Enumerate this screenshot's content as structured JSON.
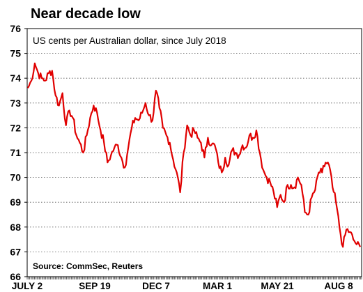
{
  "chart_data": {
    "type": "line",
    "title": "Near decade low",
    "subtitle": "US cents per Australian dollar, since July 2018",
    "source": "Source: CommSec, Reuters",
    "ylim": [
      66,
      76
    ],
    "yticks": [
      "76",
      "75",
      "74",
      "73",
      "72",
      "71",
      "70",
      "69",
      "68",
      "67",
      "66"
    ],
    "x_tick_labels": [
      "JULY 2",
      "SEP 19",
      "DEC 7",
      "MAR 1",
      "MAY 21",
      "AUG 8"
    ],
    "grid": true,
    "line_color": "#e00000",
    "series": [
      {
        "values": [
          73.6,
          73.9,
          74.6,
          74.2,
          74.0,
          73.9,
          74.2,
          74.3,
          73.3,
          72.9,
          73.4,
          72.1,
          72.7,
          72.4,
          71.7,
          71.4,
          71.0,
          71.7,
          72.4,
          72.9,
          72.6,
          71.9,
          71.4,
          70.6,
          70.9,
          71.2,
          71.3,
          70.8,
          70.4,
          71.2,
          72.0,
          72.4,
          72.3,
          72.6,
          73.0,
          72.5,
          72.3,
          73.5,
          72.8,
          72.0,
          71.7,
          71.4,
          70.7,
          70.2,
          69.4,
          71.0,
          72.1,
          71.7,
          71.9,
          71.6,
          71.4,
          70.8,
          71.6,
          71.3,
          71.3,
          70.6,
          70.2,
          70.8,
          70.5,
          71.1,
          71.0,
          70.9,
          71.3,
          71.2,
          71.7,
          71.6,
          71.9,
          71.0,
          70.3,
          70.0,
          69.8,
          69.4,
          68.8,
          69.3,
          69.0,
          69.7,
          69.7,
          69.6,
          70.0,
          69.7,
          68.6,
          68.5,
          69.2,
          69.5,
          70.2,
          70.2,
          70.6,
          70.5,
          69.6,
          69.0,
          68.0,
          67.2,
          67.9,
          67.8,
          67.5,
          67.3,
          67.2
        ]
      }
    ]
  }
}
